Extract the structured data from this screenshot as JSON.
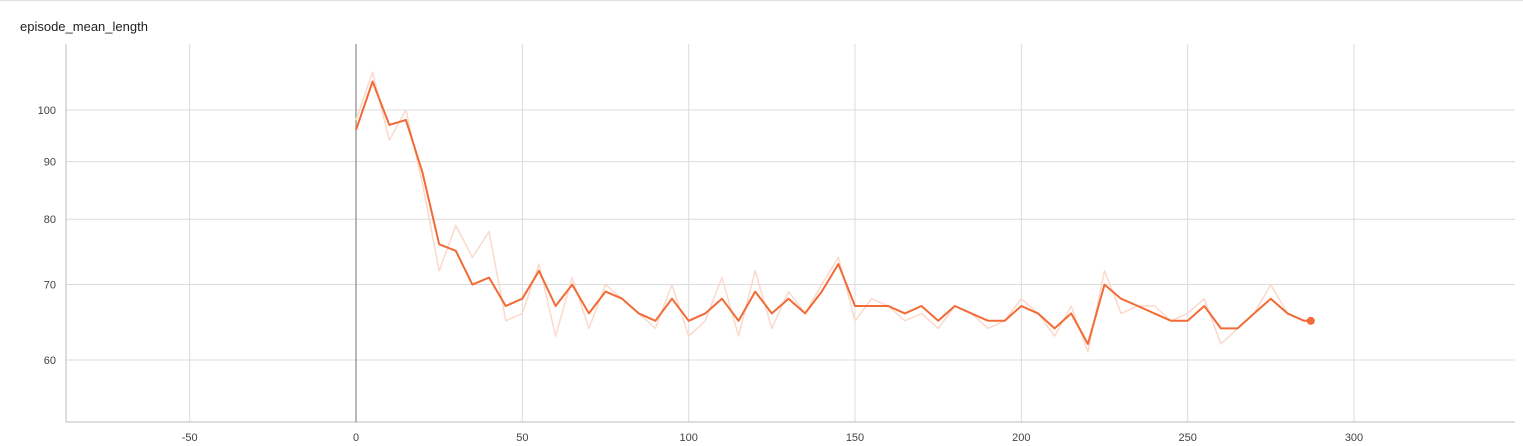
{
  "chart_data": {
    "type": "line",
    "title": "episode_mean_length",
    "xlabel": "",
    "ylabel": "",
    "xlim": [
      -87,
      350
    ],
    "ylim": [
      55,
      111
    ],
    "yscale": "log",
    "x_ticks": [
      "-50",
      "0",
      "50",
      "100",
      "150",
      "200",
      "250",
      "300"
    ],
    "y_ticks": [
      "60",
      "70",
      "80",
      "90",
      "100"
    ],
    "grid": true,
    "legend": "none",
    "colors": {
      "smoothed": "#f26b36",
      "raw": "#fbd9cc",
      "vertical_marker": "#8a8a8a"
    },
    "series": [
      {
        "x": [
          0,
          5,
          10,
          15,
          20,
          25,
          30,
          35,
          40,
          45,
          50,
          55,
          60,
          65,
          70,
          75,
          80,
          85,
          90,
          95,
          100,
          105,
          110,
          115,
          120,
          125,
          130,
          135,
          140,
          145,
          150,
          155,
          160,
          165,
          170,
          175,
          180,
          185,
          190,
          195,
          200,
          205,
          210,
          215,
          220,
          225,
          230,
          235,
          240,
          245,
          250,
          255,
          260,
          265,
          270,
          275,
          280,
          285,
          287
        ],
        "raw": [
          98,
          108,
          94,
          100,
          86,
          72,
          79,
          74,
          78,
          65,
          66,
          73,
          63,
          71,
          64,
          70,
          68,
          66,
          64,
          70,
          63,
          65,
          71,
          63,
          72,
          64,
          69,
          66,
          70,
          74,
          65,
          68,
          67,
          65,
          66,
          64,
          67,
          66,
          64,
          65,
          68,
          66,
          63,
          67,
          61,
          72,
          66,
          67,
          67,
          65,
          66,
          68,
          62,
          64,
          66,
          70,
          66,
          65,
          65
        ],
        "smoothed": [
          96,
          106,
          97,
          98,
          88,
          76,
          75,
          70,
          71,
          67,
          68,
          72,
          67,
          70,
          66,
          69,
          68,
          66,
          65,
          68,
          65,
          66,
          68,
          65,
          69,
          66,
          68,
          66,
          69,
          73,
          67,
          67,
          67,
          66,
          67,
          65,
          67,
          66,
          65,
          65,
          67,
          66,
          64,
          66,
          62,
          70,
          68,
          67,
          66,
          65,
          65,
          67,
          64,
          64,
          66,
          68,
          66,
          65,
          65
        ]
      }
    ]
  }
}
